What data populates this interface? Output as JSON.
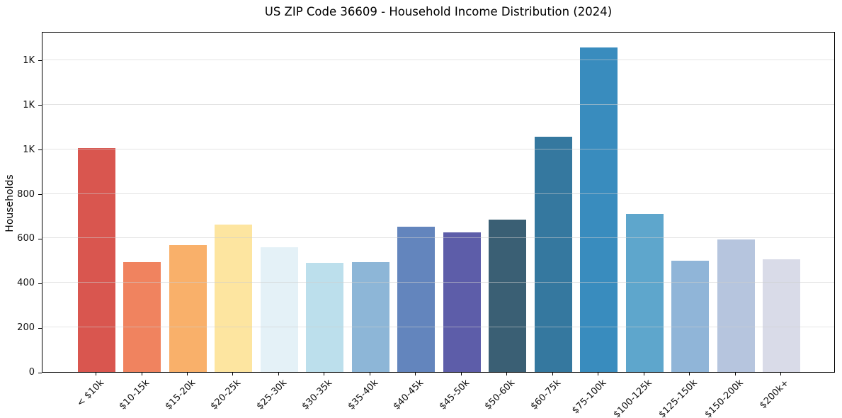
{
  "chart_data": {
    "type": "bar",
    "title": "US ZIP Code 36609 - Household Income Distribution (2024)",
    "xlabel": "",
    "ylabel": "Households",
    "categories": [
      "< $10k",
      "$10-15k",
      "$15-20k",
      "$20-25k",
      "$25-30k",
      "$30-35k",
      "$35-40k",
      "$40-45k",
      "$45-50k",
      "$50-60k",
      "$60-75k",
      "$75-100k",
      "$100-125k",
      "$125-150k",
      "$150-200k",
      "$200k+"
    ],
    "values": [
      1006,
      494,
      568,
      661,
      561,
      489,
      493,
      652,
      626,
      684,
      1056,
      1456,
      710,
      498,
      596,
      506
    ],
    "bar_colors": [
      "#d9564f",
      "#f0835f",
      "#f9b06a",
      "#fde5a0",
      "#e4f1f7",
      "#bcdfec",
      "#8db6d7",
      "#6385bd",
      "#5d5da9",
      "#3a5f74",
      "#35789f",
      "#398cbe",
      "#5ea6cc",
      "#90b5d8",
      "#b6c5de",
      "#d9dbe8"
    ],
    "ytick_values": [
      0,
      200,
      400,
      600,
      800,
      1000,
      1200,
      1400
    ],
    "ytick_labels": [
      "0",
      "200",
      "400",
      "600",
      "800",
      "1K",
      "1K",
      "1K"
    ],
    "ylim": [
      0,
      1530
    ],
    "grid": "horizontal",
    "legend": "none",
    "background_color": "#ffffff",
    "spine_color": "#000000",
    "gridline_color": "#e6e6e6"
  }
}
